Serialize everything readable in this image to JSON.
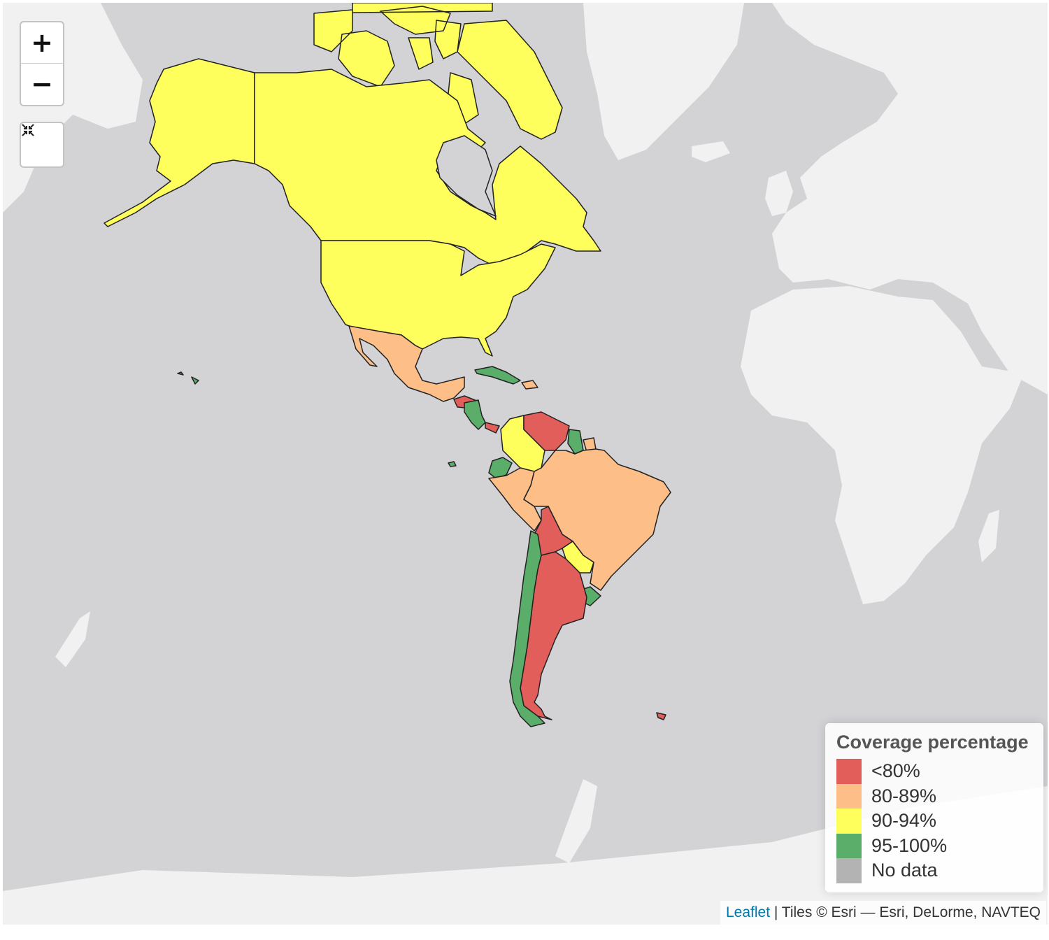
{
  "map": {
    "zoom_in_label": "+",
    "zoom_out_label": "−",
    "reset_icon": "collapse-arrows-icon"
  },
  "legend": {
    "title": "Coverage percentage",
    "items": [
      {
        "label": "<80%",
        "color": "#e15e5a"
      },
      {
        "label": "80-89%",
        "color": "#fdbe88"
      },
      {
        "label": "90-94%",
        "color": "#feff5c"
      },
      {
        "label": "95-100%",
        "color": "#5aae6a"
      },
      {
        "label": "No data",
        "color": "#b3b3b3"
      }
    ]
  },
  "attribution": {
    "leaflet": "Leaflet",
    "tiles": "| Tiles © Esri — Esri, DeLorme, NAVTEQ"
  },
  "regions": [
    {
      "name": "Alaska",
      "category": "90-94%"
    },
    {
      "name": "Canada",
      "category": "90-94%"
    },
    {
      "name": "Greenland-side islands",
      "category": "90-94%"
    },
    {
      "name": "United States",
      "category": "90-94%"
    },
    {
      "name": "Mexico",
      "category": "80-89%"
    },
    {
      "name": "Cuba",
      "category": "95-100%"
    },
    {
      "name": "Central America north",
      "category": "<80%"
    },
    {
      "name": "Central America south",
      "category": "95-100%"
    },
    {
      "name": "Colombia",
      "category": "90-94%"
    },
    {
      "name": "Venezuela",
      "category": "<80%"
    },
    {
      "name": "Guyana",
      "category": "95-100%"
    },
    {
      "name": "Suriname",
      "category": "80-89%"
    },
    {
      "name": "Ecuador",
      "category": "95-100%"
    },
    {
      "name": "Peru",
      "category": "80-89%"
    },
    {
      "name": "Brazil",
      "category": "80-89%"
    },
    {
      "name": "Bolivia",
      "category": "<80%"
    },
    {
      "name": "Paraguay",
      "category": "90-94%"
    },
    {
      "name": "Uruguay",
      "category": "95-100%"
    },
    {
      "name": "Chile",
      "category": "95-100%"
    },
    {
      "name": "Argentina",
      "category": "<80%"
    }
  ]
}
